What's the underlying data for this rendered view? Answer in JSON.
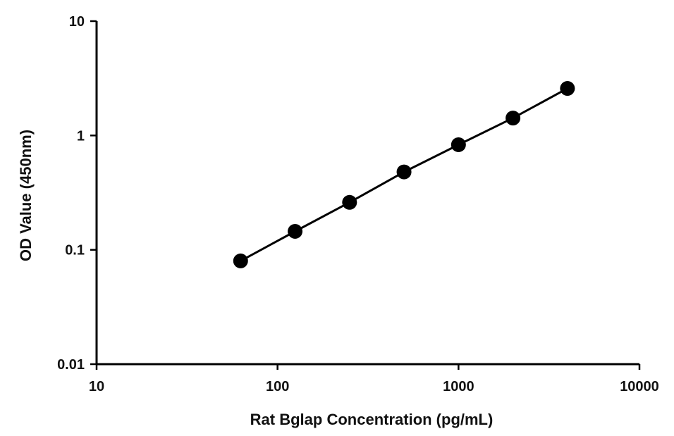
{
  "chart_data": {
    "type": "scatter",
    "xlabel": "Rat Bglap Concentration (pg/mL)",
    "ylabel": "OD Value (450nm)",
    "x_scale": "log",
    "y_scale": "log",
    "xlim": [
      10,
      10000
    ],
    "ylim": [
      0.01,
      10
    ],
    "x_ticks": [
      "10",
      "100",
      "1000",
      "10000"
    ],
    "y_ticks": [
      "0.01",
      "0.1",
      "1",
      "10"
    ],
    "grid": false,
    "legend": "none",
    "series": [
      {
        "x": [
          62.5,
          125,
          250,
          500,
          1000,
          2000,
          4000
        ],
        "y": [
          0.08,
          0.145,
          0.26,
          0.48,
          0.83,
          1.42,
          2.58
        ],
        "color": "#000000",
        "marker": "circle",
        "line": true
      }
    ]
  }
}
